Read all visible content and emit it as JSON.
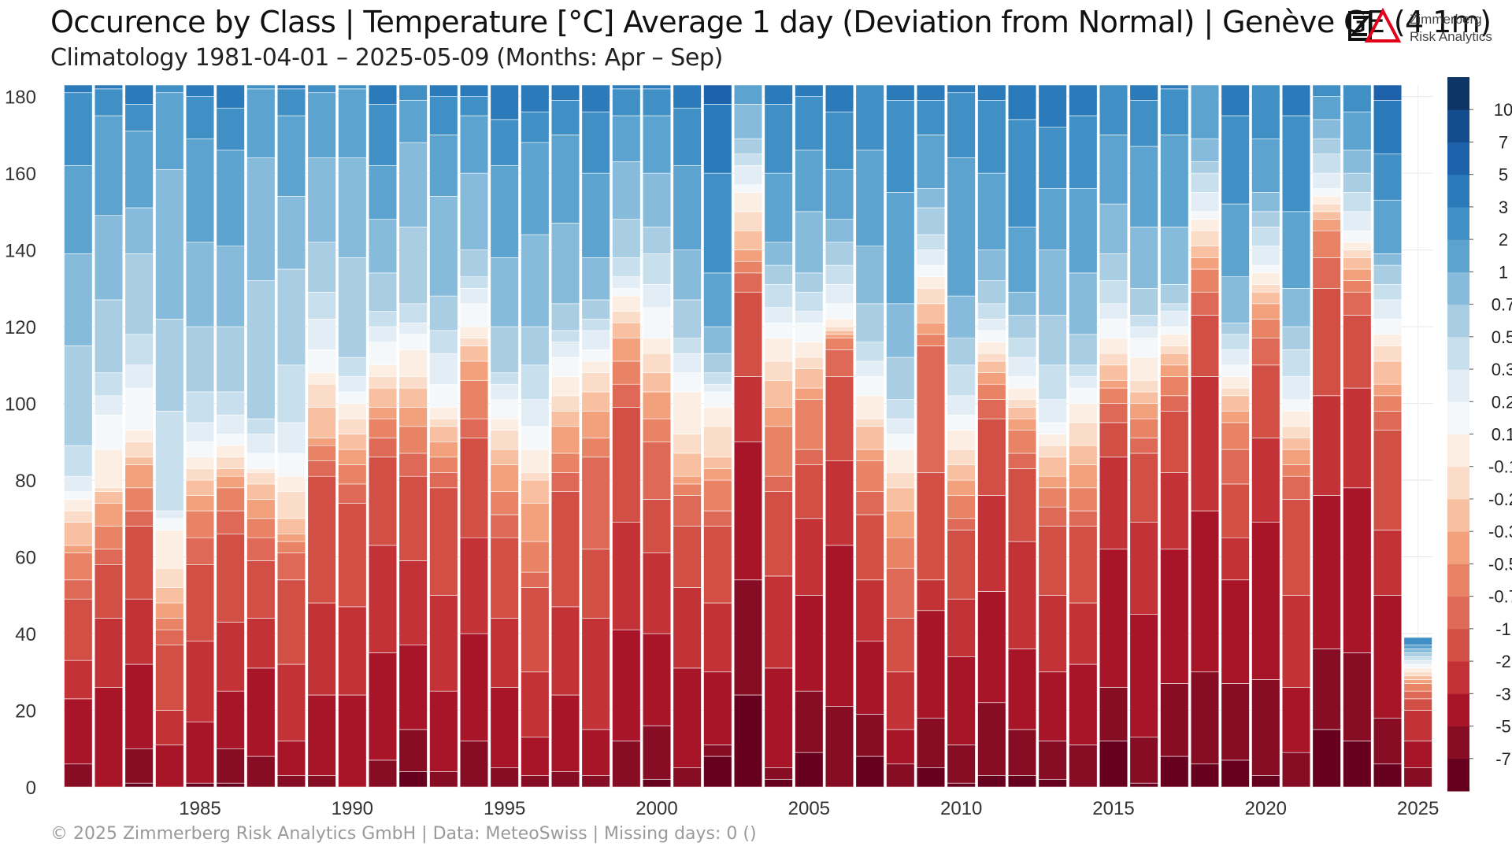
{
  "header": {
    "title": "Occurence by Class | Temperature [°C] Average 1 day (Deviation from Normal) | Genève  GE (4 1m)",
    "subtitle": "Climatology 1981-04-01 – 2025-05-09 (Months: Apr – Sep)"
  },
  "logo": {
    "line1": "Zimmerberg",
    "line2": "Risk Analytics"
  },
  "footer": {
    "text": "©  2025 Zimmerberg Risk Analytics GmbH | Data: MeteoSwiss | Missing days: 0 ()"
  },
  "chart_data": {
    "type": "bar",
    "stacked": true,
    "title": "Occurence by Class | Temperature [°C] Average 1 day (Deviation from Normal) | Genève  GE (4 1m)",
    "subtitle": "Climatology 1981-04-01 – 2025-05-09 (Months: Apr – Sep)",
    "xlabel": "",
    "ylabel": "",
    "x_ticks": [
      1985,
      1990,
      1995,
      2000,
      2005,
      2010,
      2015,
      2020,
      2025
    ],
    "y_ticks": [
      0,
      20,
      40,
      60,
      80,
      100,
      120,
      140,
      160,
      180
    ],
    "ylim": [
      0,
      183
    ],
    "xlim": [
      1980.5,
      2025.5
    ],
    "grid": true,
    "legend": "colorbar-right",
    "colorbar_labels": [
      "10",
      "7",
      "5",
      "3",
      "2",
      "1",
      "0.7",
      "0.5",
      "0.3",
      "0.2",
      "0.1",
      "-0.1",
      "-0.2",
      "-0.3",
      "-0.5",
      "-0.7",
      "-1",
      "-2",
      "-3",
      "-5",
      "-7"
    ],
    "colors": [
      "#67001f",
      "#860d24",
      "#a81529",
      "#c23236",
      "#d14f45",
      "#de6957",
      "#e98366",
      "#f3a07d",
      "#f8bfa0",
      "#fbdcc8",
      "#fdeee3",
      "#f5f8fa",
      "#e2edf5",
      "#c8dfee",
      "#a9cee4",
      "#87bbdb",
      "#5da3cf",
      "#4090c5",
      "#2b7bba",
      "#1d62aa",
      "#144d8d",
      "#0d3566"
    ],
    "class_order": "bottom = warmest (>10) to top = coldest (<-7)",
    "years": [
      1981,
      1982,
      1983,
      1984,
      1985,
      1986,
      1987,
      1988,
      1989,
      1990,
      1991,
      1992,
      1993,
      1994,
      1995,
      1996,
      1997,
      1998,
      1999,
      2000,
      2001,
      2002,
      2003,
      2004,
      2005,
      2006,
      2007,
      2008,
      2009,
      2010,
      2011,
      2012,
      2013,
      2014,
      2015,
      2016,
      2017,
      2018,
      2019,
      2020,
      2021,
      2022,
      2023,
      2024,
      2025
    ],
    "cumulative": [
      [
        0,
        0,
        6,
        23,
        33,
        49,
        54,
        61,
        63,
        69,
        72,
        75,
        77,
        81,
        89,
        115,
        139,
        162,
        181,
        183,
        183,
        183
      ],
      [
        0,
        0,
        0,
        26,
        44,
        58,
        62,
        68,
        74,
        77,
        78,
        88,
        97,
        102,
        108,
        127,
        149,
        175,
        182,
        183,
        183,
        183
      ],
      [
        0,
        1,
        10,
        32,
        49,
        68,
        72,
        78,
        84,
        86,
        90,
        93,
        104,
        110,
        118,
        139,
        151,
        171,
        178,
        183,
        183,
        183
      ],
      [
        0,
        0,
        0,
        11,
        20,
        37,
        41,
        44,
        48,
        52,
        57,
        67,
        70,
        72,
        98,
        122,
        161,
        181,
        183,
        183,
        183,
        183
      ],
      [
        0,
        1,
        1,
        17,
        38,
        58,
        65,
        72,
        76,
        80,
        83,
        86,
        90,
        95,
        103,
        120,
        142,
        169,
        180,
        183,
        183,
        183
      ],
      [
        0,
        1,
        10,
        25,
        43,
        66,
        72,
        78,
        81,
        83,
        86,
        89,
        92,
        97,
        103,
        120,
        141,
        166,
        177,
        183,
        183,
        183
      ],
      [
        0,
        0,
        8,
        31,
        44,
        59,
        65,
        70,
        75,
        79,
        82,
        83,
        87,
        92,
        96,
        132,
        164,
        182,
        183,
        183,
        183,
        183
      ],
      [
        0,
        0,
        3,
        12,
        32,
        54,
        61,
        64,
        66,
        70,
        77,
        81,
        87,
        95,
        110,
        135,
        154,
        175,
        182,
        183,
        183,
        183
      ],
      [
        0,
        0,
        3,
        24,
        48,
        81,
        85,
        89,
        91,
        99,
        105,
        108,
        114,
        122,
        129,
        142,
        164,
        181,
        183,
        183,
        183,
        183
      ],
      [
        0,
        0,
        0,
        24,
        47,
        74,
        79,
        84,
        88,
        92,
        96,
        100,
        103,
        107,
        112,
        138,
        164,
        182,
        183,
        183,
        183,
        183
      ],
      [
        0,
        0,
        7,
        35,
        63,
        86,
        91,
        96,
        99,
        104,
        107,
        110,
        116,
        120,
        124,
        134,
        148,
        162,
        178,
        183,
        183,
        183
      ],
      [
        0,
        4,
        15,
        37,
        59,
        81,
        87,
        94,
        99,
        104,
        107,
        114,
        118,
        121,
        126,
        146,
        168,
        179,
        183,
        183,
        183,
        183
      ],
      [
        0,
        0,
        4,
        25,
        50,
        78,
        82,
        86,
        90,
        94,
        96,
        99,
        105,
        113,
        119,
        128,
        154,
        170,
        180,
        183,
        183,
        183
      ],
      [
        0,
        0,
        12,
        40,
        65,
        91,
        96,
        106,
        111,
        115,
        117,
        120,
        126,
        130,
        133,
        140,
        160,
        175,
        180,
        183,
        183,
        183
      ],
      [
        0,
        0,
        5,
        26,
        44,
        65,
        71,
        77,
        84,
        88,
        93,
        96,
        101,
        105,
        108,
        120,
        138,
        162,
        174,
        183,
        183,
        183
      ],
      [
        0,
        0,
        3,
        13,
        30,
        52,
        56,
        64,
        74,
        80,
        82,
        88,
        94,
        101,
        110,
        120,
        144,
        168,
        176,
        183,
        183,
        183
      ],
      [
        0,
        0,
        4,
        24,
        47,
        77,
        82,
        87,
        94,
        98,
        102,
        107,
        112,
        116,
        119,
        126,
        147,
        170,
        179,
        183,
        183,
        183
      ],
      [
        0,
        0,
        3,
        15,
        44,
        62,
        86,
        91,
        98,
        103,
        108,
        111,
        114,
        119,
        122,
        127,
        138,
        160,
        176,
        183,
        183,
        183
      ],
      [
        0,
        0,
        12,
        41,
        69,
        99,
        105,
        111,
        117,
        121,
        124,
        128,
        130,
        133,
        138,
        148,
        163,
        175,
        182,
        183,
        183,
        183
      ],
      [
        0,
        2,
        16,
        40,
        61,
        75,
        90,
        96,
        103,
        108,
        113,
        117,
        125,
        131,
        139,
        146,
        160,
        175,
        182,
        183,
        183,
        183
      ],
      [
        0,
        0,
        5,
        31,
        52,
        68,
        76,
        79,
        81,
        87,
        92,
        103,
        108,
        113,
        117,
        127,
        140,
        162,
        177,
        183,
        183,
        183
      ],
      [
        0,
        8,
        11,
        30,
        48,
        68,
        72,
        80,
        83,
        86,
        94,
        99,
        103,
        105,
        108,
        113,
        120,
        134,
        160,
        178,
        183,
        183
      ],
      [
        0,
        24,
        54,
        90,
        107,
        129,
        134,
        137,
        140,
        145,
        150,
        155,
        157,
        162,
        165,
        169,
        178,
        183,
        183,
        183,
        183,
        183
      ],
      [
        0,
        2,
        5,
        31,
        55,
        77,
        81,
        94,
        99,
        106,
        111,
        117,
        121,
        125,
        131,
        136,
        142,
        160,
        178,
        183,
        183,
        183
      ],
      [
        0,
        9,
        25,
        50,
        70,
        84,
        88,
        101,
        104,
        109,
        112,
        116,
        121,
        124,
        129,
        134,
        150,
        166,
        180,
        183,
        183,
        183
      ],
      [
        0,
        0,
        21,
        63,
        85,
        107,
        114,
        117,
        118,
        119,
        120,
        122,
        126,
        131,
        136,
        142,
        148,
        161,
        176,
        183,
        183,
        183
      ],
      [
        0,
        8,
        19,
        38,
        54,
        71,
        77,
        85,
        88,
        94,
        96,
        102,
        107,
        111,
        116,
        126,
        141,
        166,
        183,
        183,
        183,
        183
      ],
      [
        0,
        0,
        6,
        15,
        30,
        44,
        57,
        65,
        72,
        78,
        82,
        88,
        92,
        96,
        101,
        112,
        126,
        155,
        179,
        183,
        183,
        183
      ],
      [
        0,
        5,
        18,
        46,
        54,
        82,
        115,
        118,
        121,
        126,
        130,
        133,
        136,
        140,
        144,
        151,
        156,
        170,
        179,
        183,
        183,
        183
      ],
      [
        0,
        1,
        11,
        34,
        49,
        67,
        70,
        76,
        80,
        84,
        88,
        93,
        97,
        102,
        110,
        117,
        128,
        164,
        181,
        183,
        183,
        183
      ],
      [
        0,
        3,
        22,
        51,
        76,
        96,
        101,
        105,
        108,
        111,
        113,
        116,
        119,
        122,
        126,
        132,
        140,
        160,
        179,
        183,
        183,
        183
      ],
      [
        0,
        3,
        15,
        36,
        64,
        83,
        87,
        93,
        96,
        99,
        101,
        104,
        107,
        112,
        117,
        123,
        129,
        146,
        174,
        183,
        183,
        183
      ],
      [
        0,
        2,
        12,
        30,
        50,
        68,
        73,
        78,
        81,
        86,
        89,
        92,
        95,
        101,
        110,
        123,
        140,
        156,
        172,
        183,
        183,
        183
      ],
      [
        0,
        0,
        11,
        32,
        48,
        68,
        72,
        78,
        84,
        89,
        95,
        100,
        104,
        107,
        110,
        118,
        134,
        156,
        175,
        183,
        183,
        183
      ],
      [
        0,
        12,
        26,
        62,
        86,
        95,
        100,
        104,
        106,
        110,
        113,
        117,
        122,
        126,
        132,
        139,
        152,
        170,
        183,
        183,
        183,
        183
      ],
      [
        0,
        1,
        13,
        45,
        69,
        87,
        91,
        96,
        100,
        103,
        106,
        112,
        117,
        120,
        123,
        130,
        146,
        167,
        179,
        183,
        183,
        183
      ],
      [
        0,
        8,
        27,
        62,
        82,
        98,
        102,
        107,
        110,
        113,
        115,
        118,
        120,
        124,
        126,
        131,
        146,
        170,
        182,
        183,
        183,
        183
      ],
      [
        0,
        6,
        30,
        72,
        107,
        123,
        129,
        135,
        138,
        141,
        145,
        148,
        150,
        155,
        160,
        163,
        169,
        183,
        183,
        183,
        183,
        183
      ],
      [
        0,
        7,
        27,
        54,
        65,
        79,
        88,
        95,
        98,
        102,
        104,
        107,
        110,
        114,
        118,
        121,
        133,
        152,
        175,
        183,
        183,
        183
      ],
      [
        0,
        3,
        28,
        69,
        91,
        110,
        117,
        122,
        126,
        129,
        131,
        134,
        136,
        141,
        146,
        150,
        155,
        169,
        183,
        183,
        183,
        183
      ],
      [
        0,
        0,
        9,
        26,
        50,
        75,
        81,
        84,
        88,
        91,
        94,
        98,
        101,
        107,
        114,
        120,
        130,
        150,
        175,
        183,
        183,
        183
      ],
      [
        0,
        15,
        36,
        76,
        102,
        130,
        138,
        145,
        148,
        150,
        152,
        154,
        156,
        160,
        165,
        169,
        174,
        180,
        183,
        183,
        183,
        183
      ],
      [
        0,
        12,
        35,
        78,
        104,
        123,
        129,
        132,
        135,
        138,
        140,
        142,
        145,
        150,
        155,
        160,
        166,
        176,
        183,
        183,
        183,
        183
      ],
      [
        0,
        6,
        18,
        50,
        67,
        93,
        98,
        102,
        105,
        111,
        115,
        118,
        122,
        127,
        131,
        136,
        139,
        153,
        165,
        179,
        183,
        183
      ],
      [
        0,
        0,
        5,
        12,
        20,
        23,
        25,
        27,
        28,
        29,
        30,
        31,
        32,
        33,
        34,
        35,
        36,
        37,
        39,
        39,
        39,
        39
      ]
    ]
  }
}
